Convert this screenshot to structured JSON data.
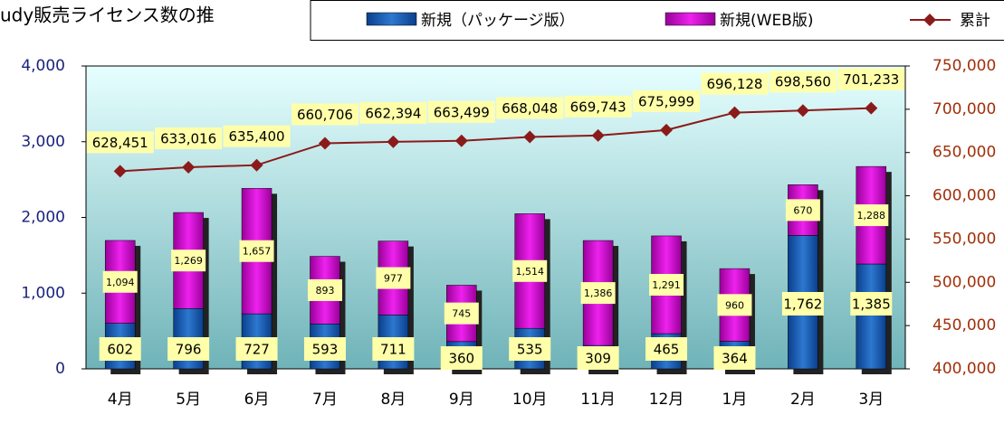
{
  "chart_data": {
    "type": "bar-line",
    "title": "udy販売ライセンス数の推",
    "categories": [
      "4月",
      "5月",
      "6月",
      "7月",
      "8月",
      "9月",
      "10月",
      "11月",
      "12月",
      "1月",
      "2月",
      "3月"
    ],
    "series": [
      {
        "name": "新規（パッケージ版）",
        "color": "#1f5fb4",
        "type": "bar",
        "stack": true,
        "values": [
          602,
          796,
          727,
          593,
          711,
          360,
          535,
          309,
          465,
          364,
          1762,
          1385
        ],
        "value_labels": [
          "602",
          "796",
          "727",
          "593",
          "711",
          "360",
          "535",
          "309",
          "465",
          "364",
          "1,762",
          "1,385"
        ]
      },
      {
        "name": "新規(WEB版)",
        "color": "#cc00cc",
        "type": "bar",
        "stack": true,
        "values": [
          1094,
          1269,
          1657,
          893,
          977,
          745,
          1514,
          1386,
          1291,
          960,
          670,
          1288
        ],
        "value_labels": [
          "1,094",
          "1,269",
          "1,657",
          "893",
          "977",
          "745",
          "1,514",
          "1,386",
          "1,291",
          "960",
          "670",
          "1,288"
        ]
      },
      {
        "name": "累計",
        "color": "#8b1a1a",
        "type": "line",
        "axis": "y2",
        "values": [
          628451,
          633016,
          635400,
          660706,
          662394,
          663499,
          668048,
          669743,
          675999,
          696128,
          698560,
          701233
        ],
        "value_labels": [
          "628,451",
          "633,016",
          "635,400",
          "660,706",
          "662,394",
          "663,499",
          "668,048",
          "669,743",
          "675,999",
          "696,128",
          "698,560",
          "701,233"
        ]
      }
    ],
    "ylim": [
      0,
      4000
    ],
    "yticks": [
      0,
      {
        "value": 1000,
        "label": "1,000"
      },
      {
        "value": 2000,
        "label": "2,000"
      },
      {
        "value": 3000,
        "label": "3,000"
      },
      {
        "value": 4000,
        "label": "4,000"
      }
    ],
    "y2lim": [
      400000,
      750000
    ],
    "y2ticks": [
      {
        "value": 400000,
        "label": "400,000"
      },
      {
        "value": 450000,
        "label": "450,000"
      },
      {
        "value": 500000,
        "label": "500,000"
      },
      {
        "value": 550000,
        "label": "550,000"
      },
      {
        "value": 600000,
        "label": "600,000"
      },
      {
        "value": 650000,
        "label": "650,000"
      },
      {
        "value": 700000,
        "label": "700,000"
      },
      {
        "value": 750000,
        "label": "750,000"
      }
    ]
  }
}
